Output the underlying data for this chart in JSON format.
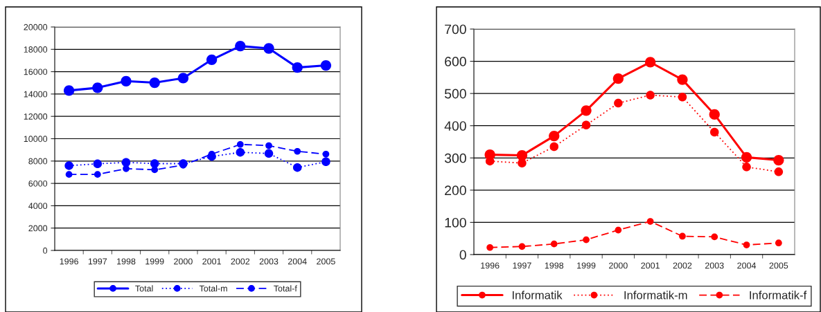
{
  "chart_data": [
    {
      "type": "line",
      "categories": [
        "1996",
        "1997",
        "1998",
        "1999",
        "2000",
        "2001",
        "2002",
        "2003",
        "2004",
        "2005"
      ],
      "ylim": [
        0,
        20000
      ],
      "yticks": [
        0,
        2000,
        4000,
        6000,
        8000,
        10000,
        12000,
        14000,
        16000,
        18000,
        20000
      ],
      "grid": "y",
      "legend": "bottom",
      "marker": "circle",
      "series": [
        {
          "name": "Total",
          "color": "#0000ff",
          "line_style": "solid",
          "values": [
            14310,
            14560,
            15150,
            15010,
            15420,
            17070,
            18290,
            18080,
            16370,
            16560
          ]
        },
        {
          "name": "Total-m",
          "color": "#0000ff",
          "line_style": "dotted",
          "values": [
            7590,
            7750,
            7880,
            7770,
            7770,
            8410,
            8780,
            8680,
            7420,
            7940
          ]
        },
        {
          "name": "Total-f",
          "color": "#0000ff",
          "line_style": "dashed",
          "values": [
            6800,
            6800,
            7320,
            7220,
            7630,
            8620,
            9490,
            9380,
            8870,
            8620
          ]
        }
      ]
    },
    {
      "type": "line",
      "categories": [
        "1996",
        "1997",
        "1998",
        "1999",
        "2000",
        "2001",
        "2002",
        "2003",
        "2004",
        "2005"
      ],
      "ylim": [
        0,
        700
      ],
      "yticks": [
        0,
        100,
        200,
        300,
        400,
        500,
        600,
        700
      ],
      "grid": "y",
      "legend": "bottom",
      "marker": "circle",
      "series": [
        {
          "name": "Informatik",
          "color": "#ff0000",
          "line_style": "solid",
          "values": [
            310,
            308,
            368,
            447,
            546,
            597,
            543,
            435,
            302,
            293
          ]
        },
        {
          "name": "Informatik-m",
          "color": "#ff0000",
          "line_style": "dotted",
          "values": [
            290,
            284,
            335,
            402,
            470,
            495,
            489,
            380,
            272,
            257
          ]
        },
        {
          "name": "Informatik-f",
          "color": "#ff0000",
          "line_style": "dashed",
          "values": [
            22,
            25,
            33,
            46,
            76,
            103,
            57,
            55,
            30,
            36
          ]
        }
      ]
    }
  ]
}
